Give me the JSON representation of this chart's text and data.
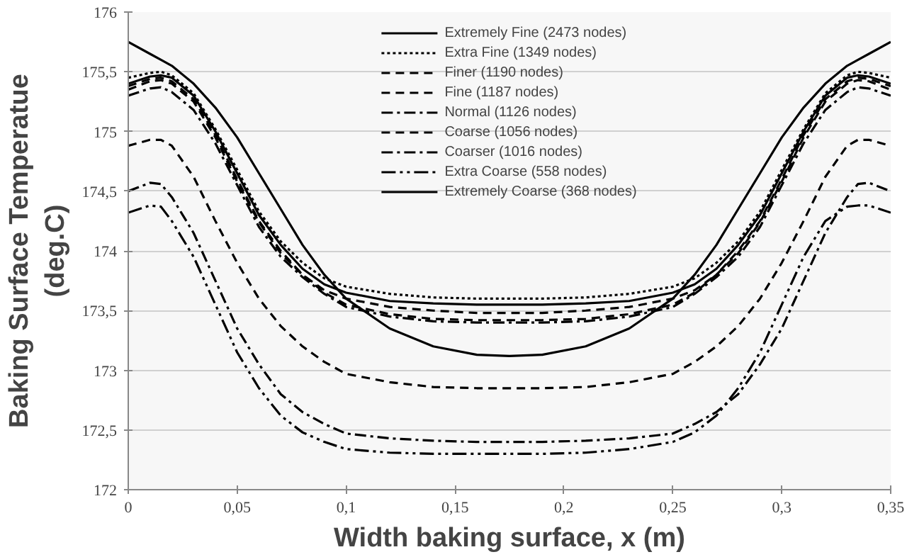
{
  "chart_data": {
    "type": "line",
    "xlabel": "Width baking surface, x (m)",
    "ylabel": "Baking Surface Temperatue\n(deg.C)",
    "x": [
      0,
      0.01,
      0.015,
      0.02,
      0.03,
      0.04,
      0.05,
      0.06,
      0.07,
      0.08,
      0.09,
      0.1,
      0.12,
      0.14,
      0.16,
      0.175,
      0.19,
      0.21,
      0.23,
      0.25,
      0.26,
      0.27,
      0.28,
      0.29,
      0.3,
      0.31,
      0.32,
      0.33,
      0.335,
      0.34,
      0.35
    ],
    "series": [
      {
        "name": "Extremely Fine (2473 nodes)",
        "color": "#000000",
        "line_style": "solid",
        "values": [
          175.4,
          175.46,
          175.47,
          175.45,
          175.3,
          175.0,
          174.65,
          174.3,
          174.05,
          173.85,
          173.72,
          173.65,
          173.58,
          173.56,
          173.55,
          173.55,
          173.55,
          173.56,
          173.58,
          173.65,
          173.72,
          173.85,
          174.05,
          174.3,
          174.65,
          175.0,
          175.3,
          175.45,
          175.47,
          175.46,
          175.4
        ]
      },
      {
        "name": "Extra Fine (1349 nodes)",
        "color": "#000000",
        "line_style": "dotted",
        "values": [
          175.45,
          175.49,
          175.5,
          175.47,
          175.32,
          175.02,
          174.68,
          174.33,
          174.08,
          173.9,
          173.77,
          173.7,
          173.64,
          173.61,
          173.6,
          173.6,
          173.6,
          173.61,
          173.64,
          173.7,
          173.77,
          173.9,
          174.08,
          174.33,
          174.68,
          175.02,
          175.32,
          175.47,
          175.5,
          175.49,
          175.45
        ]
      },
      {
        "name": "Finer (1190 nodes)",
        "color": "#000000",
        "line_style": "dashed",
        "values": [
          175.38,
          175.44,
          175.45,
          175.42,
          175.27,
          174.97,
          174.6,
          174.25,
          174.0,
          173.8,
          173.65,
          173.55,
          173.47,
          173.43,
          173.42,
          173.42,
          173.42,
          173.43,
          173.47,
          173.55,
          173.65,
          173.8,
          174.0,
          174.25,
          174.6,
          174.97,
          175.27,
          175.42,
          175.45,
          175.44,
          175.38
        ]
      },
      {
        "name": "Fine (1187 nodes)",
        "color": "#000000",
        "line_style": "dashed",
        "values": [
          175.35,
          175.42,
          175.43,
          175.4,
          175.25,
          174.95,
          174.58,
          174.24,
          173.98,
          173.8,
          173.67,
          173.6,
          173.53,
          173.5,
          173.48,
          173.48,
          173.48,
          173.5,
          173.53,
          173.6,
          173.67,
          173.8,
          173.98,
          174.24,
          174.58,
          174.95,
          175.25,
          175.4,
          175.43,
          175.42,
          175.35
        ]
      },
      {
        "name": "Normal (1126 nodes)",
        "color": "#000000",
        "line_style": "dashdot",
        "values": [
          175.3,
          175.36,
          175.37,
          175.33,
          175.18,
          174.9,
          174.55,
          174.2,
          173.95,
          173.78,
          173.64,
          173.53,
          173.45,
          173.41,
          173.4,
          173.4,
          173.4,
          173.41,
          173.45,
          173.53,
          173.64,
          173.78,
          173.95,
          174.2,
          174.55,
          174.9,
          175.18,
          175.33,
          175.37,
          175.36,
          175.3
        ]
      },
      {
        "name": "Coarse (1056 nodes)",
        "color": "#000000",
        "line_style": "dashed",
        "values": [
          174.88,
          174.93,
          174.93,
          174.88,
          174.62,
          174.25,
          173.9,
          173.6,
          173.37,
          173.2,
          173.07,
          172.97,
          172.9,
          172.86,
          172.85,
          172.85,
          172.85,
          172.86,
          172.9,
          172.97,
          173.07,
          173.2,
          173.37,
          173.6,
          173.9,
          174.25,
          174.62,
          174.88,
          174.93,
          174.93,
          174.88
        ]
      },
      {
        "name": "Coarser (1016 nodes)",
        "color": "#000000",
        "line_style": "dashdot",
        "values": [
          174.5,
          174.57,
          174.56,
          174.45,
          174.15,
          173.75,
          173.35,
          173.05,
          172.8,
          172.65,
          172.55,
          172.47,
          172.43,
          172.41,
          172.4,
          172.4,
          172.4,
          172.41,
          172.43,
          172.47,
          172.55,
          172.65,
          172.8,
          173.05,
          173.35,
          173.75,
          174.15,
          174.45,
          174.56,
          174.57,
          174.5
        ]
      },
      {
        "name": "Extra Coarse (558 nodes)",
        "color": "#000000",
        "line_style": "dashdotdot",
        "values": [
          174.32,
          174.38,
          174.37,
          174.25,
          173.95,
          173.55,
          173.15,
          172.85,
          172.62,
          172.48,
          172.4,
          172.34,
          172.31,
          172.3,
          172.3,
          172.3,
          172.3,
          172.31,
          172.34,
          172.4,
          172.48,
          172.62,
          172.85,
          173.15,
          173.55,
          173.95,
          174.25,
          174.37,
          174.38,
          174.38,
          174.32
        ]
      },
      {
        "name": "Extremely Coarse (368 nodes)",
        "color": "#000000",
        "line_style": "solid",
        "values": [
          175.75,
          175.65,
          175.6,
          175.55,
          175.4,
          175.2,
          174.95,
          174.65,
          174.35,
          174.05,
          173.8,
          173.6,
          173.35,
          173.2,
          173.13,
          173.12,
          173.13,
          173.2,
          173.35,
          173.6,
          173.8,
          174.05,
          174.35,
          174.65,
          174.95,
          175.2,
          175.4,
          175.55,
          175.6,
          175.65,
          175.75
        ]
      }
    ],
    "xlim": [
      0,
      0.35
    ],
    "ylim": [
      172,
      176
    ],
    "xticks": [
      0,
      {
        "value": 0.05,
        "label": "0,05"
      },
      {
        "value": 0.1,
        "label": "0,1"
      },
      {
        "value": 0.15,
        "label": "0,15"
      },
      {
        "value": 0.2,
        "label": "0,2"
      },
      {
        "value": 0.25,
        "label": "0,25"
      },
      {
        "value": 0.3,
        "label": "0,3"
      },
      {
        "value": 0.35,
        "label": "0,35"
      }
    ],
    "yticks": [
      172,
      {
        "value": 172.5,
        "label": "172,5"
      },
      173,
      {
        "value": 173.5,
        "label": "173,5"
      },
      174,
      {
        "value": 174.5,
        "label": "174,5"
      },
      175,
      {
        "value": 175.5,
        "label": "175,5"
      },
      176
    ],
    "grid": "y",
    "legend": "top"
  }
}
